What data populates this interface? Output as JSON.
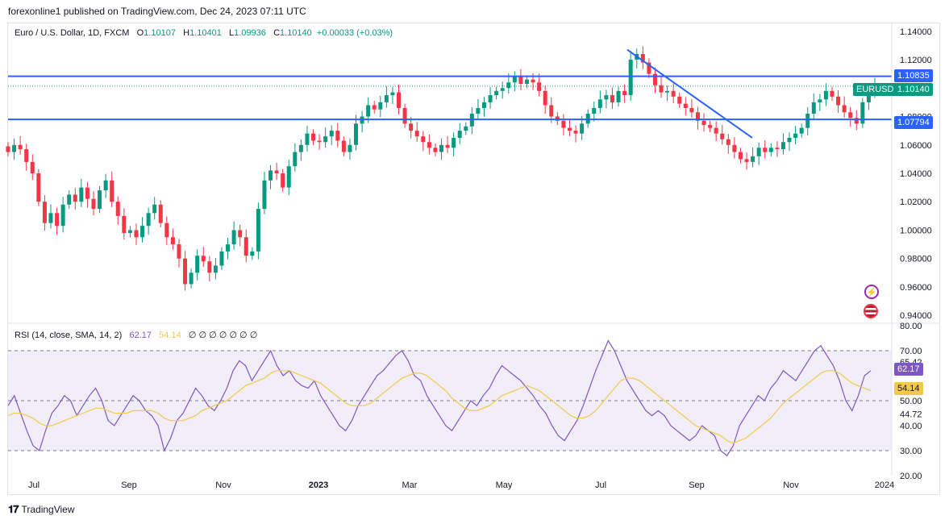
{
  "header": {
    "publisher": "forexonline1 published on TradingView.com, Dec 24, 2023 07:11 UTC"
  },
  "legend": {
    "symbol": "Euro / U.S. Dollar, 1D, FXCM",
    "o_label": "O",
    "o_value": "1.10107",
    "h_label": "H",
    "h_value": "1.10401",
    "l_label": "L",
    "l_value": "1.09936",
    "c_label": "C",
    "c_value": "1.10140",
    "change": "+0.00033 (+0.03%)"
  },
  "rsi_legend": {
    "title": "RSI (14, close, SMA, 14, 2)",
    "rsi_value": "62.17",
    "sma_value": "54.14",
    "empty_glyphs": "∅ ∅ ∅ ∅ ∅ ∅ ∅"
  },
  "badges": {
    "resistance": "1.10835",
    "symbol_tag": "EURUSD",
    "last_price": "1.10140",
    "support": "1.07794",
    "rsi_current": "62.17",
    "sma_current": "54.14"
  },
  "icons": {
    "flash": "lightning-icon",
    "flag": "us-flag-icon"
  },
  "colors": {
    "up": "#089981",
    "down": "#f23645",
    "line": "#2962ff",
    "rsi": "#7e57c2",
    "sma": "#f2c94c"
  },
  "footer": {
    "brand": "TradingView"
  },
  "chart_data": [
    {
      "type": "candlestick",
      "title": "Euro / U.S. Dollar, 1D, FXCM",
      "y_ticks": [
        "1.14000",
        "1.12000",
        "1.10000",
        "1.08000",
        "1.06000",
        "1.04000",
        "1.02000",
        "1.00000",
        "0.98000",
        "0.96000",
        "0.94000"
      ],
      "ylim": [
        0.935,
        1.145
      ],
      "x_ticks": [
        "Jul",
        "Sep",
        "Nov",
        "2023",
        "Mar",
        "May",
        "Jul",
        "Sep",
        "Nov",
        "2024"
      ],
      "horizontal_lines": [
        1.10835,
        1.07794
      ],
      "trendline": {
        "from": [
          "2023-07-18",
          1.127
        ],
        "to": [
          "2023-10-03",
          1.065
        ]
      },
      "close_series": [
        1.055,
        1.06,
        1.057,
        1.048,
        1.04,
        1.02,
        1.005,
        1.012,
        1.003,
        1.018,
        1.025,
        1.02,
        1.03,
        1.022,
        1.015,
        1.028,
        1.035,
        1.02,
        1.01,
        0.998,
        1.0,
        0.995,
        1.003,
        1.012,
        1.018,
        1.005,
        0.995,
        0.99,
        0.98,
        0.962,
        0.97,
        0.982,
        0.978,
        0.97,
        0.975,
        0.985,
        0.99,
        1.0,
        0.995,
        0.982,
        0.985,
        1.015,
        1.035,
        1.042,
        1.04,
        1.03,
        1.045,
        1.055,
        1.06,
        1.068,
        1.063,
        1.062,
        1.066,
        1.07,
        1.063,
        1.055,
        1.06,
        1.075,
        1.08,
        1.088,
        1.085,
        1.09,
        1.095,
        1.097,
        1.086,
        1.075,
        1.07,
        1.066,
        1.062,
        1.058,
        1.055,
        1.06,
        1.058,
        1.065,
        1.07,
        1.073,
        1.082,
        1.086,
        1.09,
        1.095,
        1.098,
        1.1,
        1.104,
        1.108,
        1.103,
        1.106,
        1.104,
        1.098,
        1.088,
        1.08,
        1.077,
        1.072,
        1.07,
        1.068,
        1.075,
        1.082,
        1.086,
        1.092,
        1.095,
        1.09,
        1.098,
        1.095,
        1.12,
        1.124,
        1.118,
        1.11,
        1.102,
        1.097,
        1.098,
        1.094,
        1.089,
        1.086,
        1.083,
        1.077,
        1.074,
        1.072,
        1.068,
        1.064,
        1.06,
        1.055,
        1.05,
        1.048,
        1.052,
        1.058,
        1.055,
        1.058,
        1.057,
        1.062,
        1.065,
        1.068,
        1.072,
        1.082,
        1.09,
        1.092,
        1.098,
        1.094,
        1.088,
        1.083,
        1.079,
        1.075,
        1.09,
        1.097,
        1.101
      ]
    },
    {
      "type": "line",
      "title": "RSI (14, close, SMA, 14, 2)",
      "y_ticks": [
        "80.00",
        "70.00",
        "65.42",
        "50.00",
        "44.72",
        "40.00",
        "30.00",
        "20.00"
      ],
      "ylim": [
        20,
        80
      ],
      "band": [
        30,
        70
      ],
      "series": [
        {
          "name": "RSI",
          "values": [
            48,
            52,
            45,
            38,
            32,
            30,
            38,
            45,
            48,
            52,
            50,
            44,
            48,
            52,
            55,
            50,
            42,
            40,
            44,
            48,
            52,
            50,
            46,
            44,
            40,
            30,
            35,
            42,
            45,
            50,
            55,
            52,
            48,
            46,
            50,
            55,
            62,
            66,
            64,
            58,
            62,
            66,
            70,
            64,
            60,
            62,
            58,
            56,
            55,
            58,
            52,
            48,
            44,
            40,
            38,
            42,
            48,
            52,
            56,
            60,
            62,
            65,
            68,
            70,
            66,
            60,
            58,
            52,
            48,
            44,
            40,
            38,
            42,
            46,
            50,
            48,
            52,
            55,
            60,
            64,
            62,
            60,
            58,
            55,
            52,
            48,
            45,
            40,
            36,
            34,
            38,
            42,
            48,
            55,
            62,
            68,
            74,
            70,
            64,
            58,
            54,
            50,
            46,
            44,
            46,
            44,
            40,
            38,
            36,
            34,
            36,
            40,
            38,
            36,
            30,
            28,
            32,
            40,
            44,
            48,
            52,
            50,
            55,
            58,
            62,
            60,
            58,
            62,
            66,
            70,
            72,
            68,
            64,
            58,
            50,
            46,
            52,
            60,
            62
          ]
        },
        {
          "name": "SMA",
          "values": [
            44,
            45,
            45,
            44,
            43,
            41,
            40,
            40,
            41,
            42,
            43,
            44,
            45,
            46,
            47,
            47,
            46,
            45,
            45,
            45,
            46,
            46,
            46,
            46,
            45,
            43,
            42,
            42,
            42,
            43,
            44,
            46,
            47,
            48,
            49,
            50,
            52,
            54,
            56,
            57,
            58,
            59,
            61,
            62,
            62,
            62,
            61,
            60,
            59,
            58,
            57,
            55,
            53,
            51,
            49,
            48,
            48,
            48,
            49,
            51,
            53,
            55,
            57,
            59,
            60,
            61,
            61,
            60,
            58,
            56,
            54,
            51,
            49,
            47,
            46,
            46,
            47,
            48,
            50,
            52,
            53,
            54,
            55,
            56,
            55,
            54,
            52,
            50,
            48,
            46,
            44,
            43,
            43,
            44,
            46,
            49,
            52,
            55,
            58,
            59,
            59,
            58,
            56,
            54,
            52,
            50,
            48,
            46,
            44,
            42,
            40,
            39,
            38,
            37,
            36,
            34,
            33,
            34,
            35,
            37,
            39,
            41,
            43,
            46,
            49,
            51,
            53,
            55,
            57,
            59,
            61,
            62,
            62,
            61,
            59,
            57,
            56,
            55,
            54
          ]
        }
      ]
    }
  ]
}
